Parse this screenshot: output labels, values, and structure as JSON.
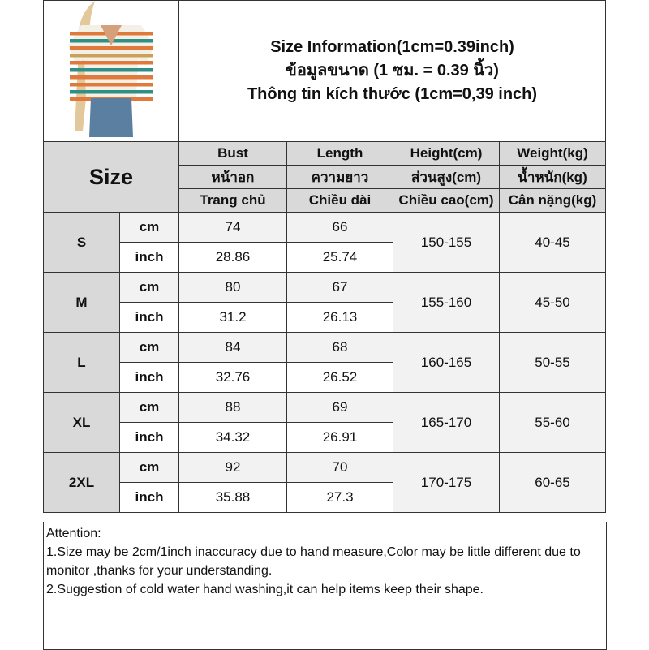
{
  "title": {
    "line1": "Size Information(1cm=0.39inch)",
    "line2": "ข้อมูลขนาด (1 ซม. = 0.39 นิ้ว)",
    "line3": "Thông tin kích thước (1cm=0,39 inch)"
  },
  "product_image": {
    "description_icon": "striped-v-neck-tshirt",
    "colors": [
      "#e07a3c",
      "#2f8f85",
      "#c9a15a",
      "#f5f0e6"
    ]
  },
  "header": {
    "size_label": "Size",
    "columns": [
      {
        "en": "Bust",
        "th": "หน้าอก",
        "vi": "Trang chủ"
      },
      {
        "en": "Length",
        "th": "ความยาว",
        "vi": "Chiều dài"
      },
      {
        "en": "Height(cm)",
        "th": "ส่วนสูง(cm)",
        "vi": "Chiều cao(cm)"
      },
      {
        "en": "Weight(kg)",
        "th": "น้ำหนัก(kg)",
        "vi": "Cân nặng(kg)"
      }
    ]
  },
  "units": {
    "cm": "cm",
    "inch": "inch"
  },
  "sizes": [
    {
      "size": "S",
      "bust_cm": "74",
      "length_cm": "66",
      "bust_inch": "28.86",
      "length_inch": "25.74",
      "height": "150-155",
      "weight": "40-45"
    },
    {
      "size": "M",
      "bust_cm": "80",
      "length_cm": "67",
      "bust_inch": "31.2",
      "length_inch": "26.13",
      "height": "155-160",
      "weight": "45-50"
    },
    {
      "size": "L",
      "bust_cm": "84",
      "length_cm": "68",
      "bust_inch": "32.76",
      "length_inch": "26.52",
      "height": "160-165",
      "weight": "50-55"
    },
    {
      "size": "XL",
      "bust_cm": "88",
      "length_cm": "69",
      "bust_inch": "34.32",
      "length_inch": "26.91",
      "height": "165-170",
      "weight": "55-60"
    },
    {
      "size": "2XL",
      "bust_cm": "92",
      "length_cm": "70",
      "bust_inch": "35.88",
      "length_inch": "27.3",
      "height": "170-175",
      "weight": "60-65"
    }
  ],
  "attention": {
    "heading": "Attention:",
    "notes": [
      "1.Size may be 2cm/1inch inaccuracy due to hand measure,Color may be little different due to monitor ,thanks for your understanding.",
      "2.Suggestion of cold water hand washing,it can help items keep their shape."
    ]
  }
}
